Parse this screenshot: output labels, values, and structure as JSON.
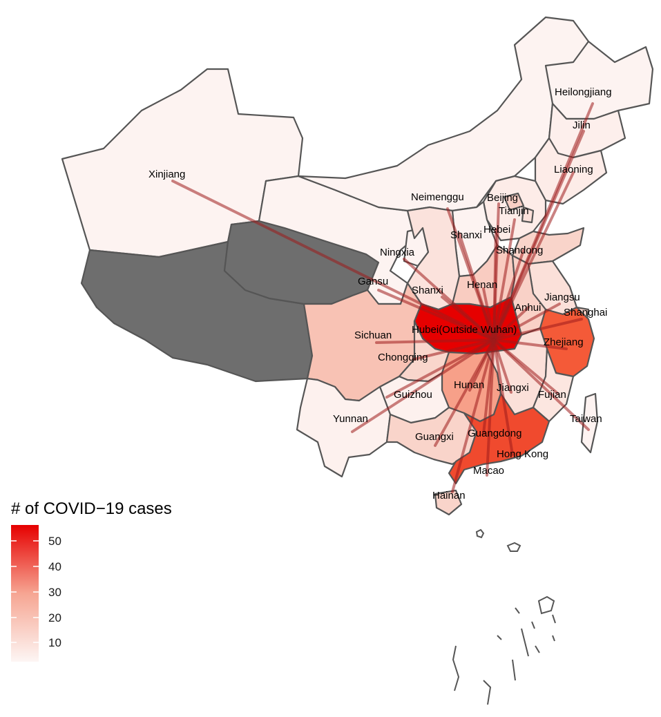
{
  "map": {
    "legend": {
      "title": "# of COVID−19 cases",
      "ticks": [
        "10",
        "20",
        "30",
        "40",
        "50"
      ],
      "gradient_low": "#fdf6f4",
      "gradient_high": "#e60000"
    },
    "colors": {
      "no_data": "#6e6e6e",
      "border": "#555555",
      "flow_line": "#9e1b1b"
    },
    "provinces": [
      {
        "name": "Xinjiang",
        "cases": 2
      },
      {
        "name": "Neimenggu",
        "cases": 2
      },
      {
        "name": "Heilongjiang",
        "cases": 3
      },
      {
        "name": "Jilin",
        "cases": 3
      },
      {
        "name": "Liaoning",
        "cases": 4
      },
      {
        "name": "Beijing",
        "cases": 10
      },
      {
        "name": "Tianjin",
        "cases": 6
      },
      {
        "name": "Hebei",
        "cases": 4
      },
      {
        "name": "Shanxi",
        "cases": 3
      },
      {
        "name": "Shandong",
        "cases": 13
      },
      {
        "name": "Ningxia",
        "cases": 2
      },
      {
        "name": "Gansu",
        "cases": 2
      },
      {
        "name": "Shanxi",
        "cases": 6
      },
      {
        "name": "Henan",
        "cases": 15
      },
      {
        "name": "Jiangsu",
        "cases": 8
      },
      {
        "name": "Anhui",
        "cases": 14
      },
      {
        "name": "Shanghai",
        "cases": 13
      },
      {
        "name": "Hubei(Outside Wuhan)",
        "cases": 55
      },
      {
        "name": "Sichuan",
        "cases": 17
      },
      {
        "name": "Chongqing",
        "cases": 12
      },
      {
        "name": "Zhejiang",
        "cases": 42
      },
      {
        "name": "Hunan",
        "cases": 25
      },
      {
        "name": "Jiangxi",
        "cases": 8
      },
      {
        "name": "Guizhou",
        "cases": 3
      },
      {
        "name": "Fujian",
        "cases": 5
      },
      {
        "name": "Yunnan",
        "cases": 3
      },
      {
        "name": "Taiwan",
        "cases": 2
      },
      {
        "name": "Guangxi",
        "cases": 14
      },
      {
        "name": "Guangdong",
        "cases": 46
      },
      {
        "name": "Hong Kong",
        "cases": 4
      },
      {
        "name": "Macao",
        "cases": 3
      },
      {
        "name": "Hainan",
        "cases": 11
      }
    ]
  }
}
